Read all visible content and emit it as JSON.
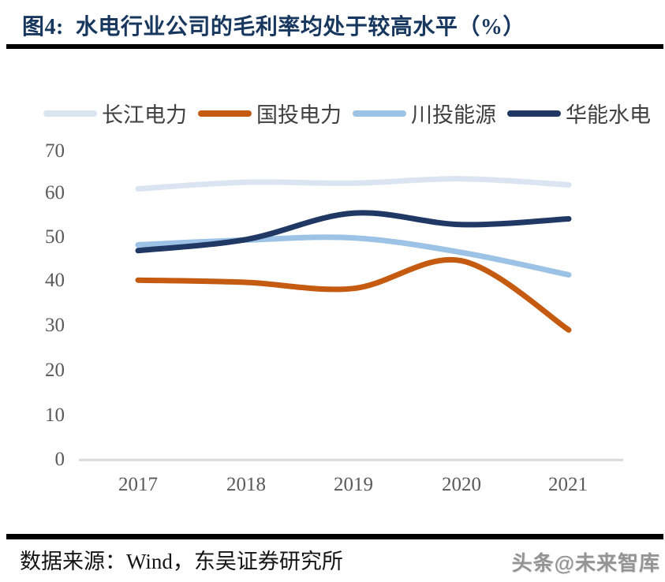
{
  "header": {
    "title": "图4:  水电行业公司的毛利率均处于较高水平（%）"
  },
  "footer": {
    "source": "数据来源：Wind，东吴证券研究所",
    "watermark": "头条@未来智库"
  },
  "chart_data": {
    "type": "line",
    "title": "图4: 水电行业公司的毛利率均处于较高水平（%）",
    "x": [
      "2017",
      "2018",
      "2019",
      "2020",
      "2021"
    ],
    "series": [
      {
        "name": "长江电力",
        "color": "#dbe5f1",
        "values": [
          61.5,
          63.0,
          62.8,
          63.8,
          62.4
        ]
      },
      {
        "name": "国投电力",
        "color": "#c55a11",
        "values": [
          40.8,
          40.3,
          38.9,
          45.2,
          29.5
        ]
      },
      {
        "name": "川投能源",
        "color": "#9cc2e5",
        "values": [
          48.8,
          49.9,
          50.4,
          47.1,
          42.0
        ]
      },
      {
        "name": "华能水电",
        "color": "#1f3864",
        "values": [
          47.5,
          50.0,
          56.0,
          53.4,
          54.7
        ]
      }
    ],
    "xlabel": "",
    "ylabel": "",
    "ylim": [
      0,
      70
    ],
    "yticks_desc": [
      "70",
      "60",
      "50",
      "40",
      "30",
      "20",
      "10",
      "0"
    ],
    "grid": false,
    "legend_position": "top",
    "axis_text_color": "#595959",
    "baseline_color": "#d9d9d9"
  }
}
